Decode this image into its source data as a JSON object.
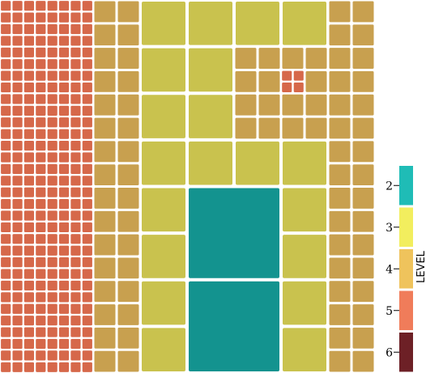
{
  "chart_data": {
    "type": "heatmap",
    "title": "",
    "xlabel": "",
    "ylabel": "",
    "colors": {
      "2": "#1fbcb6",
      "3": "#f2ee5e",
      "4": "#efc35c",
      "5": "#f07c5a",
      "6": "#6d2026"
    },
    "observed_colors": {
      "cyan": "#13938f",
      "yellow": "#c9c24e",
      "gold": "#c8a04f",
      "red": "#d6684a"
    },
    "regions": [
      {
        "level": 5,
        "color_key": "red",
        "cells": 1024,
        "x_range": [
          0,
          1
        ],
        "y_range": [
          0,
          32
        ]
      },
      {
        "level": 4,
        "color_key": "gold",
        "cells": 32,
        "x_range": [
          1,
          2
        ],
        "y_range": [
          0,
          16
        ]
      },
      {
        "level": 3,
        "color_key": "yellow",
        "cells": 4,
        "x_range": [
          2,
          3
        ],
        "y_range": [
          0,
          2
        ]
      },
      {
        "level": 2,
        "color_key": "cyan",
        "cells": 2,
        "x_range": [
          3,
          4
        ],
        "y_range": [
          4,
          8
        ]
      },
      {
        "level": 4,
        "color_key": "gold",
        "cells": 12,
        "x_range": [
          5,
          8
        ],
        "y_range": [
          1,
          3
        ]
      },
      {
        "level": 5,
        "color_key": "red",
        "cells": 4,
        "x_range": [
          6,
          7
        ],
        "y_range": [
          2,
          3
        ]
      },
      {
        "level": 4,
        "color_key": "gold",
        "cells": 16,
        "x_range": [
          7,
          8
        ],
        "y_range": [
          0,
          8
        ]
      }
    ],
    "legend": {
      "title": "LEVEL",
      "position": "right",
      "entries": [
        {
          "label": "2",
          "color": "#1fbcb6"
        },
        {
          "label": "3",
          "color": "#f2ee5e"
        },
        {
          "label": "4",
          "color": "#efc35c"
        },
        {
          "label": "5",
          "color": "#f07c5a"
        },
        {
          "label": "6",
          "color": "#6d2026"
        }
      ]
    }
  }
}
